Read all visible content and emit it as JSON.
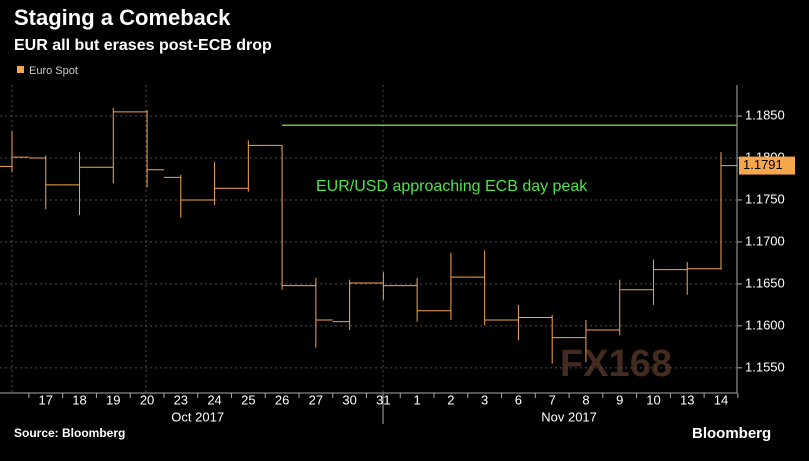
{
  "chart_data": {
    "type": "ohlc",
    "title": "Staging a Comeback",
    "subtitle": "EUR all but erases post-ECB drop",
    "categories": [
      null,
      "17",
      "18",
      "19",
      "20",
      "23",
      "24",
      "25",
      "26",
      "27",
      "30",
      "31",
      "1",
      "2",
      "3",
      "6",
      "7",
      "8",
      "9",
      "10",
      "13",
      "14"
    ],
    "month_labels": [
      "Oct 2017",
      "Nov 2017"
    ],
    "series": [
      {
        "name": "Euro Spot",
        "color": "#f6a64b",
        "open": [
          1.179,
          1.18,
          1.1768,
          1.1789,
          1.1855,
          1.1777,
          1.175,
          1.1764,
          1.1815,
          1.1648,
          1.1605,
          1.1651,
          1.1648,
          1.1618,
          1.1658,
          1.1607,
          1.161,
          1.1586,
          1.1595,
          1.1643,
          1.1667,
          1.1668
        ],
        "high": [
          1.1832,
          1.1803,
          1.1807,
          1.186,
          1.1857,
          1.178,
          1.1795,
          1.1821,
          1.1815,
          1.1657,
          1.1655,
          1.1664,
          1.1657,
          1.1687,
          1.169,
          1.1625,
          1.1613,
          1.1607,
          1.1655,
          1.1679,
          1.1676,
          1.1807
        ],
        "low": [
          1.1783,
          1.1739,
          1.1732,
          1.177,
          1.1765,
          1.1729,
          1.1744,
          1.176,
          1.1643,
          1.1574,
          1.1595,
          1.1631,
          1.1605,
          1.1607,
          1.1601,
          1.1583,
          1.1555,
          1.1557,
          1.1589,
          1.1625,
          1.1637,
          1.1667
        ],
        "close": [
          1.1801,
          1.1768,
          1.1789,
          1.1855,
          1.1786,
          1.175,
          1.1764,
          1.1815,
          1.1648,
          1.1607,
          1.1651,
          1.1648,
          1.1618,
          1.1658,
          1.1607,
          1.161,
          1.1586,
          1.1595,
          1.1643,
          1.1667,
          1.1668,
          1.1791
        ]
      }
    ],
    "reference_line": {
      "value": 1.1839,
      "color": "#6ac32f",
      "x_start": "26"
    },
    "annotation": "EUR/USD approaching ECB day peak",
    "annotation_color": "#4ee34a",
    "ylim": [
      1.152,
      1.1887
    ],
    "yticks": [
      {
        "value": 1.155,
        "label": "1.1550"
      },
      {
        "value": 1.16,
        "label": "1.1600"
      },
      {
        "value": 1.165,
        "label": "1.1650"
      },
      {
        "value": 1.17,
        "label": "1.1700"
      },
      {
        "value": 1.175,
        "label": "1.1750"
      },
      {
        "value": 1.18,
        "label": "1.1800"
      },
      {
        "value": 1.185,
        "label": "1.1850"
      }
    ],
    "grid": true,
    "source": "Source: Bloomberg",
    "brand": "Bloomberg",
    "watermark": "FX168"
  }
}
